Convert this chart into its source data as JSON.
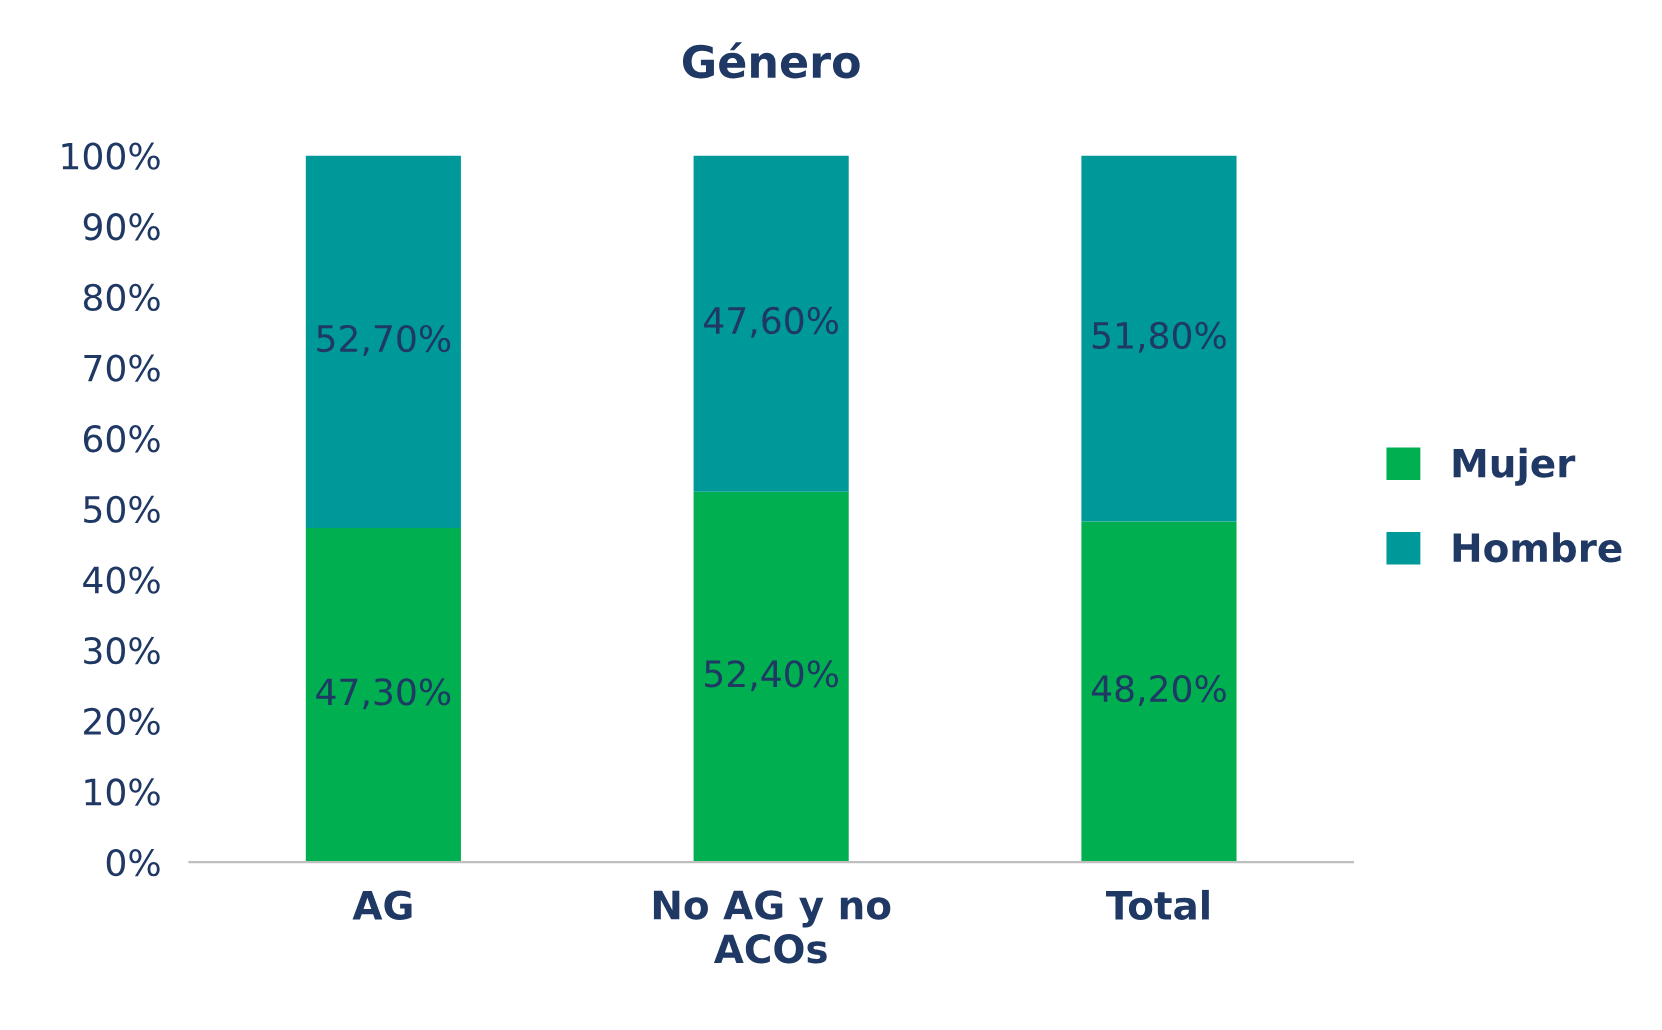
{
  "chart_data": {
    "type": "bar",
    "title": "Género",
    "stacked": true,
    "categories": [
      "AG",
      "No AG y no\nACOs",
      "Total"
    ],
    "series": [
      {
        "name": "Mujer",
        "color": "#00b050",
        "values": [
          47.3,
          52.4,
          48.2
        ],
        "value_labels": [
          "47,30%",
          "52,40%",
          "48,20%"
        ]
      },
      {
        "name": "Hombre",
        "color": "#009999",
        "values": [
          52.7,
          47.6,
          51.8
        ],
        "value_labels": [
          "52,70%",
          "47,60%",
          "51,80%"
        ]
      }
    ],
    "ylim": [
      0,
      100
    ],
    "yticks": [
      {
        "value": 0,
        "label": "0%"
      },
      {
        "value": 10,
        "label": "10%"
      },
      {
        "value": 20,
        "label": "20%"
      },
      {
        "value": 30,
        "label": "30%"
      },
      {
        "value": 40,
        "label": "40%"
      },
      {
        "value": 50,
        "label": "50%"
      },
      {
        "value": 60,
        "label": "60%"
      },
      {
        "value": 70,
        "label": "70%"
      },
      {
        "value": 80,
        "label": "80%"
      },
      {
        "value": 90,
        "label": "90%"
      },
      {
        "value": 100,
        "label": "100%"
      }
    ],
    "grid": false,
    "legend": "right"
  }
}
